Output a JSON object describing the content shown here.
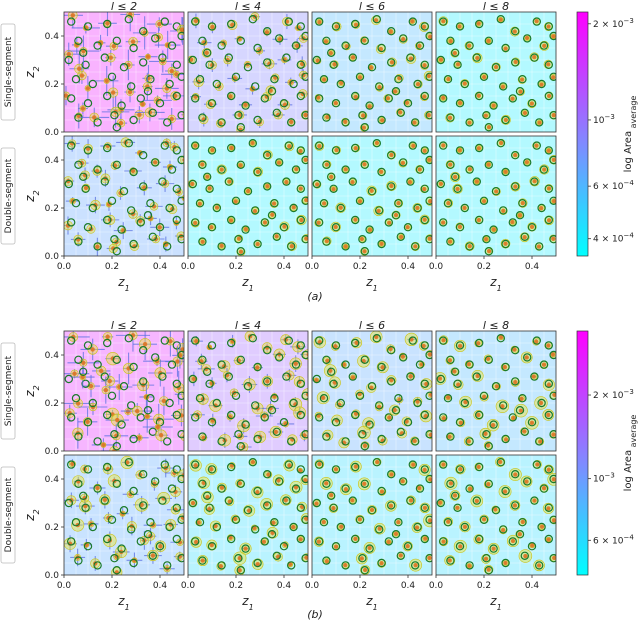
{
  "chart_data": [
    {
      "type": "scatter",
      "panel_label": "(a)",
      "column_titles": [
        "l ≤ 2",
        "l ≤ 4",
        "l ≤ 6",
        "l ≤ 8"
      ],
      "row_labels": [
        "Single-segment",
        "Double-segment"
      ],
      "xlabel": "z",
      "xlabel_sub": "1",
      "ylabel": "z",
      "ylabel_sub": "2",
      "xlim": [
        0,
        0.5
      ],
      "ylim": [
        0,
        0.5
      ],
      "x_ticks": [
        "0.0",
        "0.2",
        "0.4"
      ],
      "y_ticks": [
        "0.0",
        "0.2",
        "0.4"
      ],
      "grid": true,
      "colorbar": {
        "label": "log Area",
        "label_sub": "average",
        "ticks": [
          {
            "base": "2 × 10",
            "exp": "−3",
            "value": 0.0021
          },
          {
            "base": "10",
            "exp": "−3",
            "value": 0.001
          },
          {
            "base": "6 × 10",
            "exp": "−4",
            "value": 0.0006
          },
          {
            "base": "4 × 10",
            "exp": "−4",
            "value": 0.0004
          }
        ],
        "range": [
          0.00035,
          0.0023
        ],
        "scale": "log",
        "colors": [
          "#00ffff",
          "#ff00ff"
        ]
      },
      "panel_area_average": [
        [
          0.002,
          0.0009,
          0.0006,
          0.0004
        ],
        [
          0.0007,
          0.0004,
          0.0004,
          0.0004
        ]
      ],
      "panel_uncertainty": [
        [
          0.9,
          0.4,
          0.15,
          0.08
        ],
        [
          0.5,
          0.1,
          0.08,
          0.06
        ]
      ]
    },
    {
      "type": "scatter",
      "panel_label": "(b)",
      "column_titles": [
        "l ≤ 2",
        "l ≤ 4",
        "l ≤ 6",
        "l ≤ 8"
      ],
      "row_labels": [
        "Single-segment",
        "Double-segment"
      ],
      "xlabel": "z",
      "xlabel_sub": "1",
      "ylabel": "z",
      "ylabel_sub": "2",
      "xlim": [
        0,
        0.5
      ],
      "ylim": [
        0,
        0.5
      ],
      "x_ticks": [
        "0.0",
        "0.2",
        "0.4"
      ],
      "y_ticks": [
        "0.0",
        "0.2",
        "0.4"
      ],
      "grid": true,
      "colorbar": {
        "label": "log Area",
        "label_sub": "average",
        "ticks": [
          {
            "base": "2 × 10",
            "exp": "−3",
            "value": 0.002
          },
          {
            "base": "10",
            "exp": "−3",
            "value": 0.001
          },
          {
            "base": "6 × 10",
            "exp": "−4",
            "value": 0.0006
          }
        ],
        "range": [
          0.00045,
          0.0034
        ],
        "scale": "log",
        "colors": [
          "#00ffff",
          "#ff00ff"
        ]
      },
      "panel_area_average": [
        [
          0.0027,
          0.0016,
          0.0009,
          0.0008
        ],
        [
          0.0009,
          0.0006,
          0.0006,
          0.0006
        ]
      ],
      "panel_uncertainty": [
        [
          0.9,
          0.45,
          0.25,
          0.15
        ],
        [
          0.5,
          0.2,
          0.1,
          0.1
        ]
      ]
    }
  ],
  "true_points": [
    [
      0.03,
      0.46
    ],
    [
      0.1,
      0.44
    ],
    [
      0.18,
      0.45
    ],
    [
      0.27,
      0.47
    ],
    [
      0.33,
      0.42
    ],
    [
      0.42,
      0.46
    ],
    [
      0.47,
      0.44
    ],
    [
      0.06,
      0.38
    ],
    [
      0.14,
      0.36
    ],
    [
      0.22,
      0.38
    ],
    [
      0.29,
      0.35
    ],
    [
      0.38,
      0.39
    ],
    [
      0.45,
      0.36
    ],
    [
      0.49,
      0.4
    ],
    [
      0.02,
      0.3
    ],
    [
      0.09,
      0.28
    ],
    [
      0.17,
      0.31
    ],
    [
      0.25,
      0.27
    ],
    [
      0.33,
      0.29
    ],
    [
      0.41,
      0.31
    ],
    [
      0.47,
      0.28
    ],
    [
      0.05,
      0.22
    ],
    [
      0.12,
      0.2
    ],
    [
      0.2,
      0.23
    ],
    [
      0.28,
      0.19
    ],
    [
      0.36,
      0.22
    ],
    [
      0.44,
      0.2
    ],
    [
      0.49,
      0.23
    ],
    [
      0.03,
      0.14
    ],
    [
      0.1,
      0.12
    ],
    [
      0.18,
      0.15
    ],
    [
      0.24,
      0.11
    ],
    [
      0.32,
      0.14
    ],
    [
      0.4,
      0.12
    ],
    [
      0.47,
      0.15
    ],
    [
      0.06,
      0.06
    ],
    [
      0.14,
      0.04
    ],
    [
      0.21,
      0.07
    ],
    [
      0.29,
      0.05
    ],
    [
      0.37,
      0.08
    ],
    [
      0.43,
      0.04
    ],
    [
      0.49,
      0.07
    ],
    [
      0.08,
      0.33
    ],
    [
      0.35,
      0.17
    ],
    [
      0.22,
      0.02
    ]
  ]
}
